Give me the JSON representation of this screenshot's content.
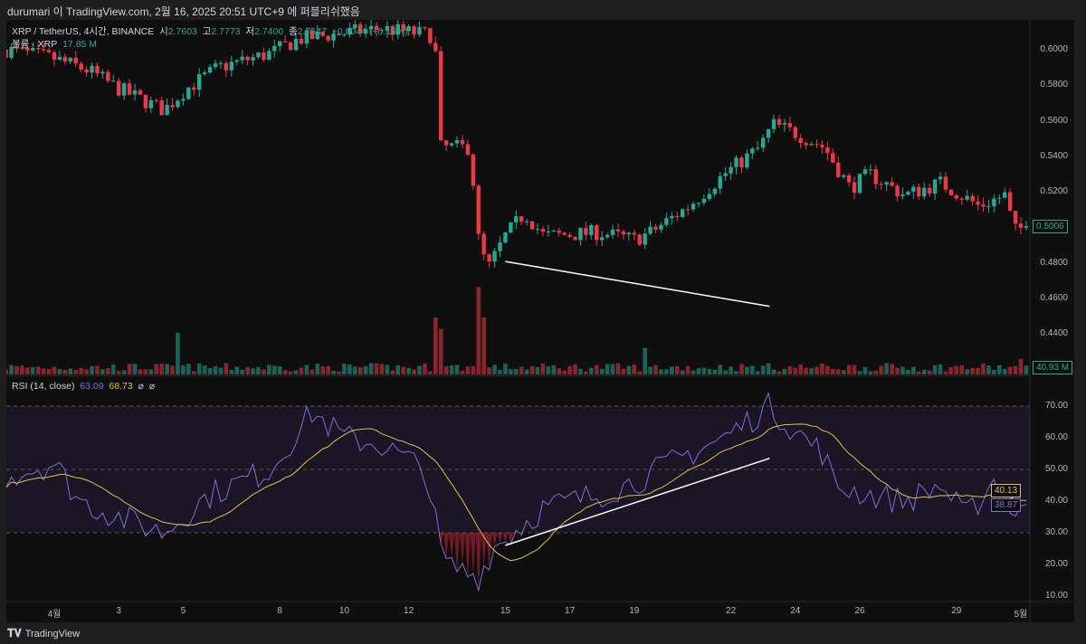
{
  "header": {
    "publish_text": "durumari 이 TradingView.com, 2월 16, 2025 20:51 UTC+9 에 퍼블리쉬했음"
  },
  "legend": {
    "symbol": "XRP / TetherUS, 4시간, BINANCE",
    "o_label": "시",
    "open": "2.7603",
    "h_label": "고",
    "high": "2.7773",
    "l_label": "저",
    "low": "2.7400",
    "c_label": "종",
    "close": "2.7647",
    "change": "+0.0044 (+0.16%)",
    "volume_label": "볼륨 · XRP",
    "volume": "17.85 M"
  },
  "rsi_legend": {
    "label": "RSI (14, close)",
    "rsi": "63.09",
    "ma": "68.73",
    "icon1": "⌀",
    "icon2": "⌀"
  },
  "price_axis": [
    "0.6000",
    "0.5800",
    "0.5600",
    "0.5400",
    "0.5200",
    "0.4800",
    "0.4600",
    "0.4400"
  ],
  "price_tag": "0.5006",
  "volume_tag": "40.93 M",
  "rsi_axis": [
    "70.00",
    "60.00",
    "50.00",
    "40.00",
    "30.00",
    "20.00",
    "10.00"
  ],
  "rsi_tags": {
    "ma": "40.13",
    "rsi": "38.87"
  },
  "time_axis": [
    {
      "label": "4월",
      "t": 0
    },
    {
      "label": "3",
      "t": 2
    },
    {
      "label": "5",
      "t": 4
    },
    {
      "label": "8",
      "t": 7
    },
    {
      "label": "10",
      "t": 9
    },
    {
      "label": "12",
      "t": 11
    },
    {
      "label": "15",
      "t": 14
    },
    {
      "label": "17",
      "t": 16
    },
    {
      "label": "19",
      "t": 18
    },
    {
      "label": "22",
      "t": 21
    },
    {
      "label": "24",
      "t": 23
    },
    {
      "label": "26",
      "t": 25
    },
    {
      "label": "29",
      "t": 28
    },
    {
      "label": "5월",
      "t": 30
    }
  ],
  "footer": {
    "brand": "TradingView"
  },
  "colors": {
    "up": "#22ab94",
    "down": "#f23645",
    "rsi": "#7e6fd6",
    "rsi_ma": "#e3c04b"
  },
  "chart_data": {
    "type": "candlestick",
    "interval_hours": 4,
    "t_unit": "days since Apr 1",
    "price_anchors": [
      [
        -1.5,
        0.6
      ],
      [
        0,
        0.595
      ],
      [
        1.1,
        0.588
      ],
      [
        2,
        0.578
      ],
      [
        3.4,
        0.566
      ],
      [
        4.1,
        0.578
      ],
      [
        5.1,
        0.59
      ],
      [
        6.7,
        0.598
      ],
      [
        7.6,
        0.606
      ],
      [
        10.1,
        0.612
      ],
      [
        11.8,
        0.608
      ],
      [
        12.0,
        0.545
      ],
      [
        12.9,
        0.545
      ],
      [
        13.2,
        0.487
      ],
      [
        13.5,
        0.478
      ],
      [
        14.0,
        0.495
      ],
      [
        14.6,
        0.508
      ],
      [
        15.2,
        0.495
      ],
      [
        16.9,
        0.497
      ],
      [
        18.0,
        0.493
      ],
      [
        18.5,
        0.497
      ],
      [
        19.7,
        0.512
      ],
      [
        20.8,
        0.53
      ],
      [
        21.9,
        0.545
      ],
      [
        22.3,
        0.558
      ],
      [
        23.0,
        0.553
      ],
      [
        23.9,
        0.545
      ],
      [
        24.7,
        0.522
      ],
      [
        25.3,
        0.53
      ],
      [
        26.4,
        0.518
      ],
      [
        27.5,
        0.525
      ],
      [
        28.7,
        0.512
      ],
      [
        29.5,
        0.518
      ],
      [
        29.8,
        0.498
      ],
      [
        30.2,
        0.5006
      ]
    ],
    "volume_spikes": [
      [
        3.9,
        110
      ],
      [
        11.9,
        150
      ],
      [
        12.0,
        120
      ],
      [
        13.2,
        230
      ],
      [
        13.3,
        150
      ],
      [
        18.3,
        70
      ],
      [
        30.0,
        40.93
      ]
    ],
    "rsi_anchors": [
      [
        -1.5,
        48
      ],
      [
        0,
        52
      ],
      [
        0.8,
        40
      ],
      [
        2,
        35
      ],
      [
        3.4,
        30
      ],
      [
        4.8,
        42
      ],
      [
        6.7,
        50
      ],
      [
        8,
        68
      ],
      [
        9,
        60
      ],
      [
        10.1,
        58
      ],
      [
        11.5,
        50
      ],
      [
        12.1,
        20
      ],
      [
        13.2,
        16
      ],
      [
        13.6,
        25
      ],
      [
        14,
        28
      ],
      [
        15.2,
        38
      ],
      [
        16.9,
        42
      ],
      [
        18,
        46
      ],
      [
        19.7,
        55
      ],
      [
        20.8,
        60
      ],
      [
        22.2,
        70
      ],
      [
        23,
        62
      ],
      [
        23.9,
        55
      ],
      [
        24.2,
        45
      ],
      [
        25.3,
        42
      ],
      [
        26.4,
        40
      ],
      [
        27.5,
        45
      ],
      [
        28.3,
        35
      ],
      [
        29.2,
        47
      ],
      [
        29.8,
        36
      ],
      [
        30.2,
        38.87
      ]
    ],
    "trendline_price": [
      [
        14.0,
        0.4807
      ],
      [
        22.2,
        0.4555
      ]
    ],
    "trendline_rsi": [
      [
        14.0,
        26
      ],
      [
        22.2,
        53.5
      ]
    ],
    "price_range": [
      0.43,
      0.615
    ],
    "rsi_range": [
      5,
      75
    ]
  }
}
